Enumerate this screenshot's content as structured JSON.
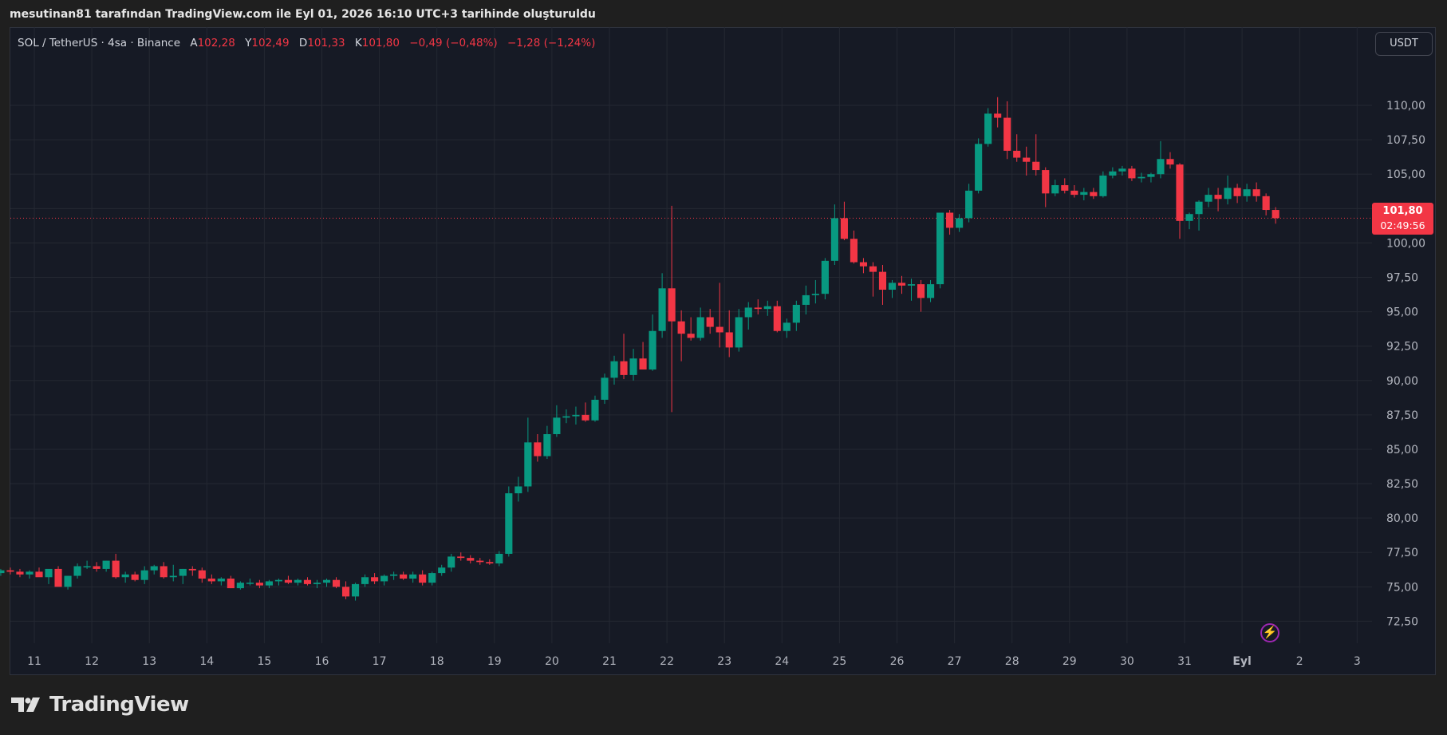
{
  "header_text": "mesutinan81 tarafından TradingView.com ile Eyl 01, 2026 16:10 UTC+3 tarihinde oluşturuldu",
  "symbol_line": {
    "symbol": "SOL / TetherUS · 4sa · Binance",
    "o_label": "A",
    "o_value": "102,28",
    "h_label": "Y",
    "h_value": "102,49",
    "l_label": "D",
    "l_value": "101,33",
    "c_label": "K",
    "c_value": "101,80",
    "change": "−0,49 (−0,48%)",
    "change2": "−1,28 (−1,24%)"
  },
  "currency_button": "USDT",
  "last_price": "101,80",
  "countdown": "02:49:56",
  "brand": "TradingView",
  "colors": {
    "up": "#089981",
    "down": "#f23645",
    "grid": "#242832",
    "background": "#161a25"
  },
  "chart_data": {
    "type": "candlestick",
    "x_labels": [
      "11",
      "12",
      "13",
      "14",
      "15",
      "16",
      "17",
      "18",
      "19",
      "20",
      "21",
      "22",
      "23",
      "24",
      "25",
      "26",
      "27",
      "28",
      "29",
      "30",
      "31",
      "Eyl",
      "2",
      "3"
    ],
    "y_ticks": [
      "72,50",
      "75,00",
      "77,50",
      "80,00",
      "82,50",
      "85,00",
      "87,50",
      "90,00",
      "92,50",
      "95,00",
      "97,50",
      "100,00",
      "102,50",
      "105,00",
      "107,50",
      "110,00"
    ],
    "ylim": [
      70.9,
      113.6
    ],
    "current_price": 101.8,
    "candles_per_day": 6,
    "first_candle_offset": -4,
    "ohlc": [
      [
        76.0,
        76.3,
        75.8,
        76.2
      ],
      [
        76.2,
        76.4,
        75.9,
        76.1
      ],
      [
        76.1,
        76.3,
        75.7,
        75.9
      ],
      [
        75.9,
        76.2,
        75.6,
        76.1
      ],
      [
        76.1,
        76.4,
        75.9,
        75.7
      ],
      [
        75.7,
        76.1,
        75.2,
        76.3
      ],
      [
        76.3,
        76.5,
        75.1,
        75.0
      ],
      [
        75.0,
        75.8,
        74.8,
        75.8
      ],
      [
        75.8,
        76.7,
        75.6,
        76.5
      ],
      [
        76.5,
        76.9,
        76.3,
        76.5
      ],
      [
        76.5,
        76.8,
        76.1,
        76.3
      ],
      [
        76.3,
        76.9,
        76.1,
        76.9
      ],
      [
        76.9,
        77.4,
        75.6,
        75.7
      ],
      [
        75.7,
        76.1,
        75.3,
        75.9
      ],
      [
        75.9,
        76.1,
        75.4,
        75.5
      ],
      [
        75.5,
        76.5,
        75.2,
        76.2
      ],
      [
        76.2,
        76.6,
        75.9,
        76.5
      ],
      [
        76.5,
        76.8,
        75.6,
        75.7
      ],
      [
        75.7,
        76.6,
        75.4,
        75.8
      ],
      [
        75.8,
        76.3,
        75.2,
        76.3
      ],
      [
        76.3,
        76.5,
        75.8,
        76.2
      ],
      [
        76.2,
        76.4,
        75.3,
        75.6
      ],
      [
        75.6,
        75.9,
        75.2,
        75.4
      ],
      [
        75.4,
        75.7,
        75.1,
        75.6
      ],
      [
        75.6,
        75.8,
        74.9,
        74.9
      ],
      [
        74.9,
        75.4,
        74.8,
        75.3
      ],
      [
        75.3,
        75.6,
        75.1,
        75.3
      ],
      [
        75.3,
        75.5,
        74.9,
        75.1
      ],
      [
        75.1,
        75.5,
        74.9,
        75.4
      ],
      [
        75.4,
        75.6,
        75.1,
        75.5
      ],
      [
        75.5,
        75.8,
        75.2,
        75.3
      ],
      [
        75.3,
        75.6,
        75.1,
        75.5
      ],
      [
        75.5,
        75.7,
        75.1,
        75.2
      ],
      [
        75.2,
        75.5,
        74.9,
        75.3
      ],
      [
        75.3,
        75.6,
        75.0,
        75.5
      ],
      [
        75.5,
        75.7,
        74.9,
        75.0
      ],
      [
        75.0,
        75.4,
        74.1,
        74.3
      ],
      [
        74.3,
        75.3,
        74.0,
        75.2
      ],
      [
        75.2,
        75.9,
        75.0,
        75.7
      ],
      [
        75.7,
        76.0,
        75.2,
        75.4
      ],
      [
        75.4,
        75.9,
        75.1,
        75.8
      ],
      [
        75.8,
        76.1,
        75.5,
        75.9
      ],
      [
        75.9,
        76.1,
        75.5,
        75.6
      ],
      [
        75.6,
        76.1,
        75.3,
        75.9
      ],
      [
        75.9,
        76.2,
        75.1,
        75.3
      ],
      [
        75.3,
        76.1,
        75.1,
        76.0
      ],
      [
        76.0,
        76.6,
        75.8,
        76.4
      ],
      [
        76.4,
        77.4,
        76.1,
        77.2
      ],
      [
        77.2,
        77.5,
        76.9,
        77.1
      ],
      [
        77.1,
        77.3,
        76.7,
        76.9
      ],
      [
        76.9,
        77.1,
        76.6,
        76.8
      ],
      [
        76.8,
        77.0,
        76.6,
        76.7
      ],
      [
        76.7,
        77.6,
        76.5,
        77.4
      ],
      [
        77.4,
        82.3,
        77.2,
        81.8
      ],
      [
        81.8,
        83.0,
        81.2,
        82.3
      ],
      [
        82.3,
        87.3,
        81.9,
        85.5
      ],
      [
        85.5,
        86.1,
        84.1,
        84.5
      ],
      [
        84.5,
        86.7,
        84.3,
        86.1
      ],
      [
        86.1,
        88.2,
        85.9,
        87.3
      ],
      [
        87.3,
        87.9,
        86.9,
        87.4
      ],
      [
        87.4,
        88.1,
        86.8,
        87.5
      ],
      [
        87.5,
        88.4,
        87.0,
        87.1
      ],
      [
        87.1,
        88.9,
        87.0,
        88.6
      ],
      [
        88.6,
        90.5,
        88.3,
        90.2
      ],
      [
        90.2,
        91.8,
        89.7,
        91.4
      ],
      [
        91.4,
        93.4,
        90.1,
        90.4
      ],
      [
        90.4,
        92.3,
        90.0,
        91.6
      ],
      [
        91.6,
        92.8,
        90.9,
        90.8
      ],
      [
        90.8,
        94.8,
        90.7,
        93.6
      ],
      [
        93.6,
        97.8,
        93.1,
        96.7
      ],
      [
        96.7,
        102.7,
        87.7,
        94.3
      ],
      [
        94.3,
        95.1,
        91.4,
        93.4
      ],
      [
        93.4,
        94.6,
        92.9,
        93.1
      ],
      [
        93.1,
        95.3,
        92.9,
        94.6
      ],
      [
        94.6,
        95.2,
        93.4,
        93.9
      ],
      [
        93.9,
        97.1,
        92.4,
        93.5
      ],
      [
        93.5,
        95.1,
        91.7,
        92.4
      ],
      [
        92.4,
        95.2,
        92.1,
        94.6
      ],
      [
        94.6,
        95.7,
        93.7,
        95.3
      ],
      [
        95.3,
        95.9,
        94.8,
        95.2
      ],
      [
        95.2,
        95.8,
        94.7,
        95.4
      ],
      [
        95.4,
        95.8,
        93.5,
        93.6
      ],
      [
        93.6,
        94.5,
        93.1,
        94.2
      ],
      [
        94.2,
        95.8,
        93.6,
        95.5
      ],
      [
        95.5,
        96.9,
        94.8,
        96.2
      ],
      [
        96.2,
        97.3,
        95.6,
        96.3
      ],
      [
        96.3,
        98.9,
        95.9,
        98.7
      ],
      [
        98.7,
        102.8,
        98.4,
        101.8
      ],
      [
        101.8,
        103.0,
        100.2,
        100.3
      ],
      [
        100.3,
        100.9,
        98.5,
        98.6
      ],
      [
        98.6,
        98.9,
        97.8,
        98.3
      ],
      [
        98.3,
        98.6,
        96.1,
        97.9
      ],
      [
        97.9,
        98.4,
        95.5,
        96.6
      ],
      [
        96.6,
        97.3,
        96.0,
        97.1
      ],
      [
        97.1,
        97.6,
        96.3,
        96.9
      ],
      [
        96.9,
        97.4,
        95.8,
        97.0
      ],
      [
        97.0,
        97.3,
        95.0,
        96.0
      ],
      [
        96.0,
        97.3,
        95.7,
        97.0
      ],
      [
        97.0,
        102.1,
        96.7,
        102.2
      ],
      [
        102.2,
        102.4,
        100.6,
        101.1
      ],
      [
        101.1,
        102.1,
        100.8,
        101.8
      ],
      [
        101.8,
        104.3,
        101.5,
        103.8
      ],
      [
        103.8,
        107.6,
        103.6,
        107.2
      ],
      [
        107.2,
        109.8,
        107.0,
        109.4
      ],
      [
        109.4,
        110.6,
        108.4,
        109.1
      ],
      [
        109.1,
        110.3,
        106.1,
        106.7
      ],
      [
        106.7,
        107.9,
        105.9,
        106.2
      ],
      [
        106.2,
        107.0,
        104.9,
        105.9
      ],
      [
        105.9,
        107.9,
        104.9,
        105.3
      ],
      [
        105.3,
        105.5,
        102.6,
        103.6
      ],
      [
        103.6,
        104.6,
        103.4,
        104.2
      ],
      [
        104.2,
        104.7,
        103.6,
        103.8
      ],
      [
        103.8,
        104.2,
        103.3,
        103.5
      ],
      [
        103.5,
        104.0,
        103.1,
        103.7
      ],
      [
        103.7,
        104.0,
        103.2,
        103.4
      ],
      [
        103.4,
        105.2,
        103.3,
        104.9
      ],
      [
        104.9,
        105.5,
        104.7,
        105.2
      ],
      [
        105.2,
        105.6,
        104.9,
        105.4
      ],
      [
        105.4,
        105.6,
        104.5,
        104.7
      ],
      [
        104.7,
        105.1,
        104.4,
        104.8
      ],
      [
        104.8,
        105.1,
        104.4,
        105.0
      ],
      [
        105.0,
        107.4,
        104.7,
        106.1
      ],
      [
        106.1,
        106.6,
        105.4,
        105.7
      ],
      [
        105.7,
        105.8,
        100.3,
        101.6
      ],
      [
        101.6,
        102.2,
        101.0,
        102.1
      ],
      [
        102.1,
        103.1,
        100.9,
        103.0
      ],
      [
        103.0,
        104.0,
        102.6,
        103.5
      ],
      [
        103.5,
        104.0,
        102.3,
        103.2
      ],
      [
        103.2,
        104.9,
        102.8,
        104.0
      ],
      [
        104.0,
        104.3,
        102.9,
        103.4
      ],
      [
        103.4,
        104.3,
        103.0,
        103.9
      ],
      [
        103.9,
        104.4,
        103.0,
        103.4
      ],
      [
        103.4,
        103.6,
        102.0,
        102.4
      ],
      [
        102.4,
        102.6,
        101.4,
        101.8
      ]
    ]
  }
}
